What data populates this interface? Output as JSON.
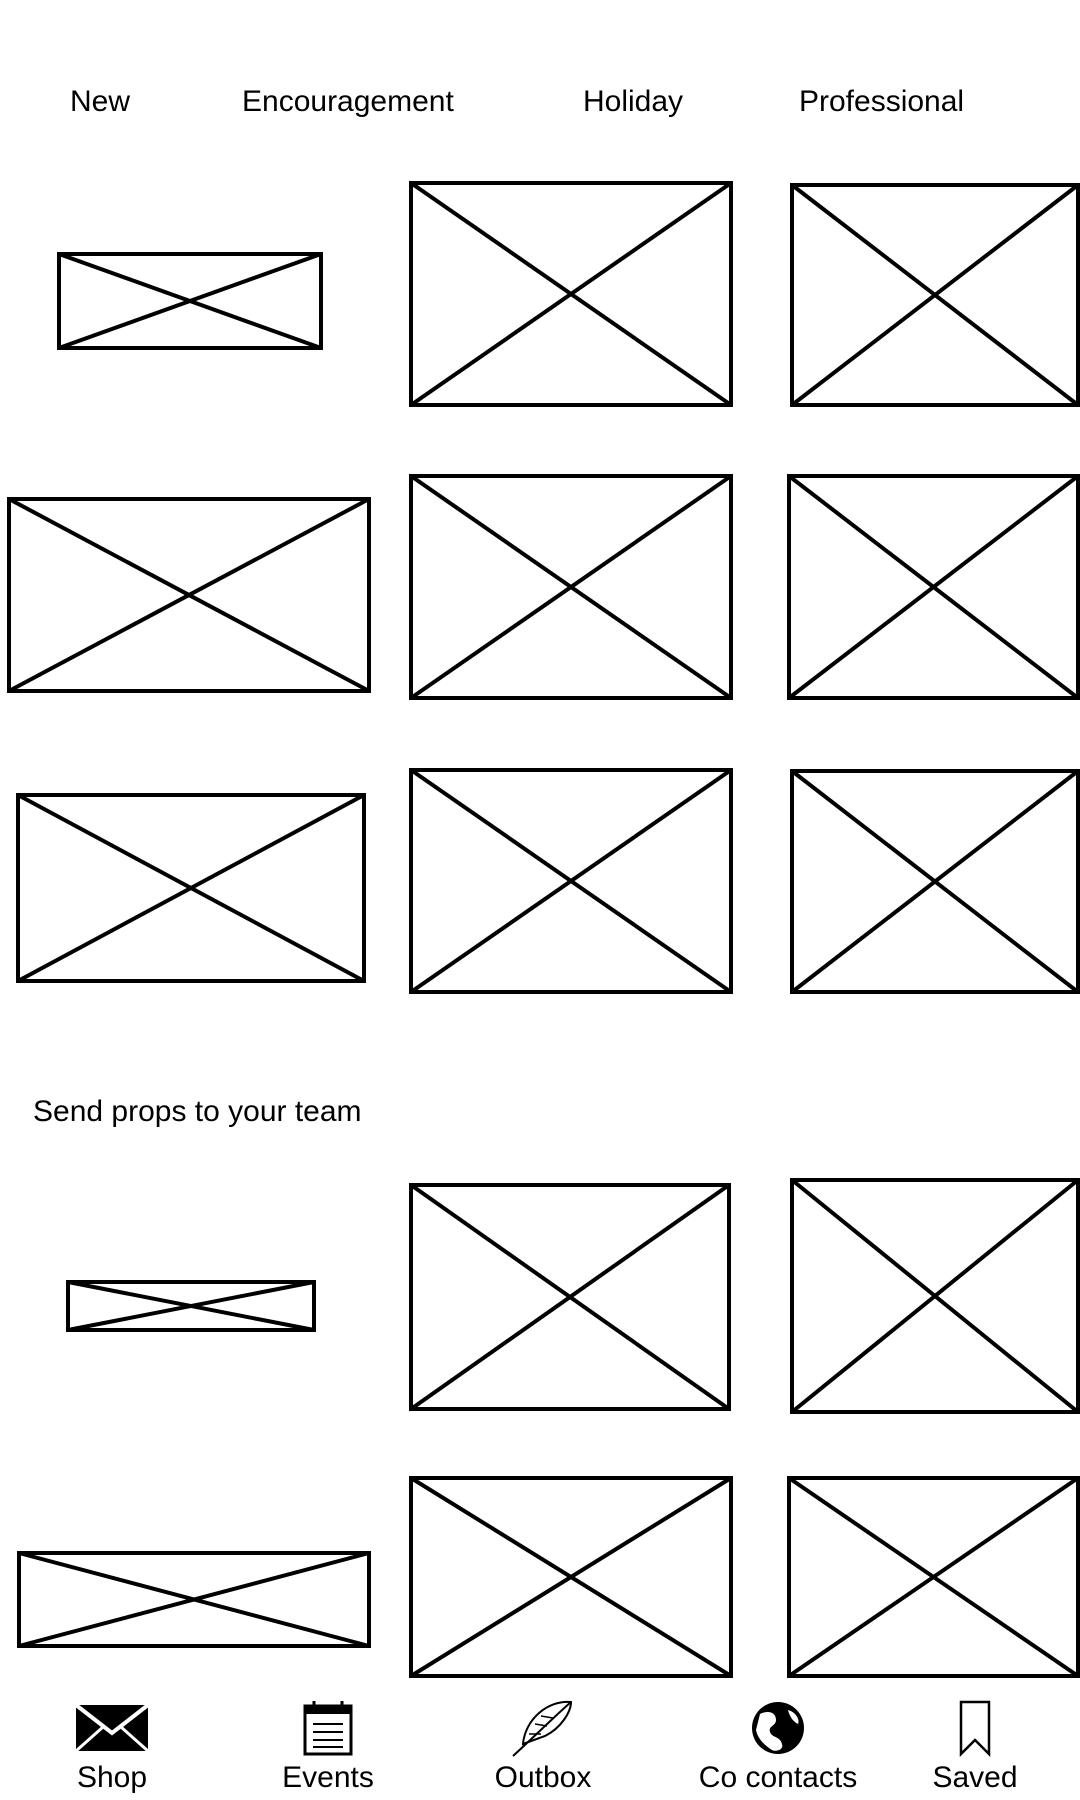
{
  "tabs": [
    {
      "label": "New"
    },
    {
      "label": "Encouragement"
    },
    {
      "label": "Holiday"
    },
    {
      "label": "Professional"
    }
  ],
  "section": {
    "title": "Send props to your team"
  },
  "cards": [
    {
      "icon": "image-placeholder-icon"
    }
  ],
  "nav": [
    {
      "label": "Shop",
      "icon": "envelope-icon"
    },
    {
      "label": "Events",
      "icon": "calendar-icon"
    },
    {
      "label": "Outbox",
      "icon": "feather-icon"
    },
    {
      "label": "Co contacts",
      "icon": "globe-icon"
    },
    {
      "label": "Saved",
      "icon": "bookmark-icon"
    }
  ],
  "colors": {
    "background": "#ffffff",
    "ink": "#000000"
  }
}
